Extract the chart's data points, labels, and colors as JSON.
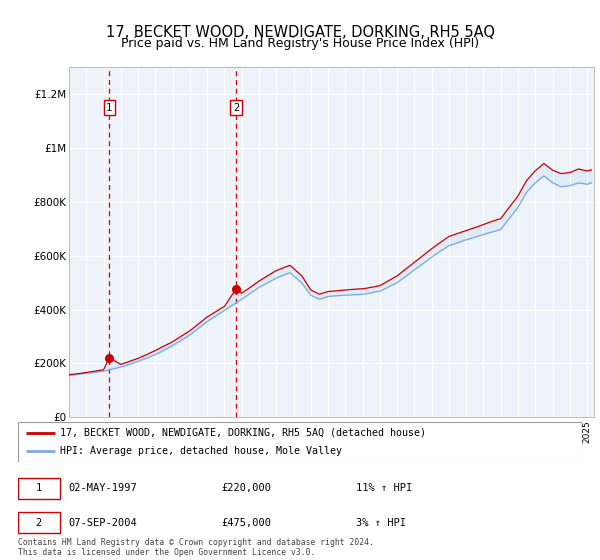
{
  "title": "17, BECKET WOOD, NEWDIGATE, DORKING, RH5 5AQ",
  "subtitle": "Price paid vs. HM Land Registry's House Price Index (HPI)",
  "title_fontsize": 10.5,
  "subtitle_fontsize": 9,
  "ylabel_ticks": [
    "£0",
    "£200K",
    "£400K",
    "£600K",
    "£800K",
    "£1M",
    "£1.2M"
  ],
  "ytick_values": [
    0,
    200000,
    400000,
    600000,
    800000,
    1000000,
    1200000
  ],
  "ylim": [
    0,
    1300000
  ],
  "xlim_start": 1995.0,
  "xlim_end": 2025.4,
  "sale1_year": 1997.33,
  "sale1_price": 220000,
  "sale1_label": "1",
  "sale1_date": "02-MAY-1997",
  "sale1_amount": "£220,000",
  "sale1_hpi": "11% ↑ HPI",
  "sale2_year": 2004.67,
  "sale2_price": 475000,
  "sale2_label": "2",
  "sale2_date": "07-SEP-2004",
  "sale2_amount": "£475,000",
  "sale2_hpi": "3% ↑ HPI",
  "red_line_color": "#cc0000",
  "blue_line_color": "#7aaadd",
  "fill_color": "#d6e8f7",
  "dashed_line_color": "#dd0000",
  "plot_bg_color": "#eef3fa",
  "legend_line1": "17, BECKET WOOD, NEWDIGATE, DORKING, RH5 5AQ (detached house)",
  "legend_line2": "HPI: Average price, detached house, Mole Valley",
  "footer": "Contains HM Land Registry data © Crown copyright and database right 2024.\nThis data is licensed under the Open Government Licence v3.0."
}
